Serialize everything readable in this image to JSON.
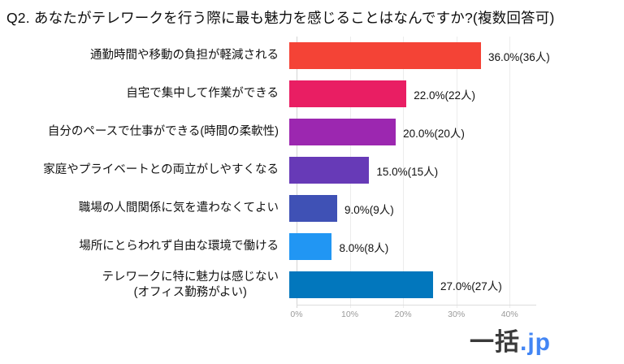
{
  "title": "Q2. あなたがテレワークを行う際に最も魅力を感じることはなんですか?(複数回答可)",
  "chart_data": {
    "type": "bar",
    "orientation": "horizontal",
    "title": "Q2. あなたがテレワークを行う際に最も魅力を感じることはなんですか?(複数回答可)",
    "categories": [
      "通勤時間や移動の負担が軽減される",
      "自宅で集中して作業ができる",
      "自分のペースで仕事ができる(時間の柔軟性)",
      "家庭やプライベートとの両立がしやすくなる",
      "職場の人間関係に気を遣わなくてよい",
      "場所にとらわれず自由な環境で働ける",
      "テレワークに特に魅力は感じない\n(オフィス勤務がよい)"
    ],
    "values": [
      36,
      22,
      20,
      15,
      9,
      8,
      27
    ],
    "value_labels": [
      "36.0%(36人)",
      "22.0%(22人)",
      "20.0%(20人)",
      "15.0%(15人)",
      "9.0%(9人)",
      "8.0%(8人)",
      "27.0%(27人)"
    ],
    "bar_colors": [
      "#F44336",
      "#E91E63",
      "#9C27B0",
      "#673AB7",
      "#3F51B5",
      "#2196F3",
      "#0277BD"
    ],
    "x_ticks": [
      0,
      10,
      20,
      30,
      40
    ],
    "x_tick_labels": [
      "0%",
      "10%",
      "20%",
      "30%",
      "40%"
    ],
    "xlim": [
      0,
      45
    ],
    "grid": true,
    "legend": "none"
  },
  "logo": {
    "text_main": "一括",
    "text_suffix": ".jp",
    "suffix_color": "#4285F4"
  }
}
